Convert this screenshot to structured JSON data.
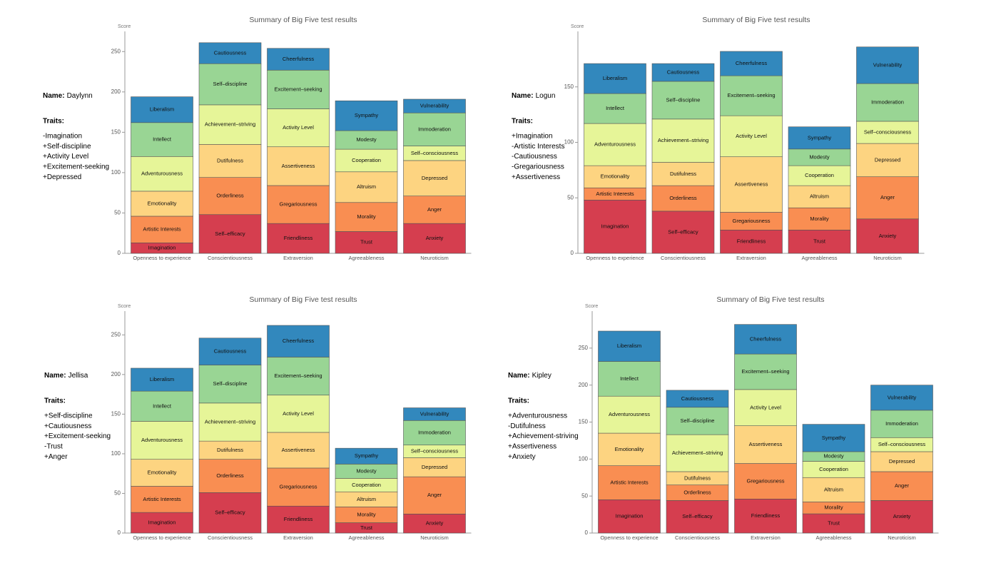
{
  "chart_data": [
    {
      "type": "bar",
      "stacked": true,
      "title": "Summary of Big Five test results",
      "ylabel": "Score",
      "name_label": "Name:",
      "name": "Daylynn",
      "traits_label": "Traits:",
      "traits": [
        "-Imagination",
        "+Self-discipline",
        "+Activity Level",
        "+Excitement-seeking",
        "+Depressed"
      ],
      "categories": [
        "Openness to experience",
        "Conscientiousness",
        "Extraversion",
        "Agreeableness",
        "Neuroticism"
      ],
      "ylim": [
        0,
        275
      ],
      "yticks": [
        0,
        50,
        100,
        150,
        200,
        250
      ],
      "series": [
        {
          "color": "#d53e4f",
          "labels": [
            "Imagination",
            "Self–efficacy",
            "Friendliness",
            "Trust",
            "Anxiety"
          ],
          "values": [
            13,
            48,
            37,
            27,
            37
          ]
        },
        {
          "color": "#f98e52",
          "labels": [
            "Artistic Interests",
            "Orderliness",
            "Gregariousness",
            "Morality",
            "Anger"
          ],
          "values": [
            33,
            46,
            47,
            36,
            34
          ]
        },
        {
          "color": "#fdd481",
          "labels": [
            "Emotionality",
            "Dutifulness",
            "Assertiveness",
            "Altruism",
            "Depressed"
          ],
          "values": [
            31,
            41,
            48,
            38,
            44
          ]
        },
        {
          "color": "#e6f598",
          "labels": [
            "Adventurousness",
            "Achievement–striving",
            "Activity Level",
            "Cooperation",
            "Self–consciousness"
          ],
          "values": [
            43,
            49,
            47,
            28,
            18
          ]
        },
        {
          "color": "#99d594",
          "labels": [
            "Intellect",
            "Self–discipline",
            "Excitement–seeking",
            "Modesty",
            "Immoderation"
          ],
          "values": [
            42,
            51,
            48,
            23,
            41
          ]
        },
        {
          "color": "#3288bd",
          "labels": [
            "Liberalism",
            "Cautiousness",
            "Cheerfulness",
            "Sympathy",
            "Vulnerability"
          ],
          "values": [
            32,
            26,
            27,
            37,
            17
          ]
        }
      ]
    },
    {
      "type": "bar",
      "stacked": true,
      "title": "Summary of Big Five test results",
      "ylabel": "Score",
      "name_label": "Name:",
      "name": "Logun",
      "traits_label": "Traits:",
      "traits": [
        "+Imagination",
        "-Artistic Interests",
        "-Cautiousness",
        "-Gregariousness",
        "+Assertiveness"
      ],
      "categories": [
        "Openness to experience",
        "Conscientiousness",
        "Extraversion",
        "Agreeableness",
        "Neuroticism"
      ],
      "ylim": [
        0,
        200
      ],
      "yticks": [
        0,
        50,
        100,
        150
      ],
      "series": [
        {
          "color": "#d53e4f",
          "labels": [
            "Imagination",
            "Self–efficacy",
            "Friendliness",
            "Trust",
            "Anxiety"
          ],
          "values": [
            48,
            38,
            21,
            21,
            31
          ]
        },
        {
          "color": "#f98e52",
          "labels": [
            "Artistic Interests",
            "Orderliness",
            "Gregariousness",
            "Morality",
            "Anger"
          ],
          "values": [
            11,
            23,
            16,
            20,
            38
          ]
        },
        {
          "color": "#fdd481",
          "labels": [
            "Emotionality",
            "Dutifulness",
            "Assertiveness",
            "Altruism",
            "Depressed"
          ],
          "values": [
            20,
            21,
            50,
            20,
            30
          ]
        },
        {
          "color": "#e6f598",
          "labels": [
            "Adventurousness",
            "Achievement–striving",
            "Activity Level",
            "Cooperation",
            "Self–consciousness"
          ],
          "values": [
            38,
            39,
            37,
            18,
            20
          ]
        },
        {
          "color": "#99d594",
          "labels": [
            "Intellect",
            "Self–discipline",
            "Excitement–seeking",
            "Modesty",
            "Immoderation"
          ],
          "values": [
            27,
            34,
            36,
            15,
            34
          ]
        },
        {
          "color": "#3288bd",
          "labels": [
            "Liberalism",
            "Cautiousness",
            "Cheerfulness",
            "Sympathy",
            "Vulnerability"
          ],
          "values": [
            27,
            16,
            22,
            20,
            33
          ]
        }
      ]
    },
    {
      "type": "bar",
      "stacked": true,
      "title": "Summary of Big Five test results",
      "ylabel": "Score",
      "name_label": "Name:",
      "name": "Jellisa",
      "traits_label": "Traits:",
      "traits": [
        "+Self-discipline",
        "+Cautiousness",
        "+Excitement-seeking",
        "-Trust",
        "+Anger"
      ],
      "categories": [
        "Openness to experience",
        "Conscientiousness",
        "Extraversion",
        "Agreeableness",
        "Neuroticism"
      ],
      "ylim": [
        0,
        280
      ],
      "yticks": [
        0,
        50,
        100,
        150,
        200,
        250
      ],
      "series": [
        {
          "color": "#d53e4f",
          "labels": [
            "Imagination",
            "Self–efficacy",
            "Friendliness",
            "Trust",
            "Anxiety"
          ],
          "values": [
            26,
            51,
            34,
            13,
            24
          ]
        },
        {
          "color": "#f98e52",
          "labels": [
            "Artistic Interests",
            "Orderliness",
            "Gregariousness",
            "Morality",
            "Anger"
          ],
          "values": [
            33,
            42,
            48,
            20,
            47
          ]
        },
        {
          "color": "#fdd481",
          "labels": [
            "Emotionality",
            "Dutifulness",
            "Assertiveness",
            "Altruism",
            "Depressed"
          ],
          "values": [
            34,
            23,
            45,
            19,
            24
          ]
        },
        {
          "color": "#e6f598",
          "labels": [
            "Adventurousness",
            "Achievement–striving",
            "Activity Level",
            "Cooperation",
            "Self–consciousness"
          ],
          "values": [
            48,
            48,
            47,
            17,
            16
          ]
        },
        {
          "color": "#99d594",
          "labels": [
            "Intellect",
            "Self–discipline",
            "Excitement–seeking",
            "Modesty",
            "Immoderation"
          ],
          "values": [
            38,
            48,
            48,
            18,
            31
          ]
        },
        {
          "color": "#3288bd",
          "labels": [
            "Liberalism",
            "Cautiousness",
            "Cheerfulness",
            "Sympathy",
            "Vulnerability"
          ],
          "values": [
            29,
            34,
            40,
            20,
            16
          ]
        }
      ]
    },
    {
      "type": "bar",
      "stacked": true,
      "title": "Summary of Big Five test results",
      "ylabel": "Score",
      "name_label": "Name:",
      "name": "Kipley",
      "traits_label": "Traits:",
      "traits": [
        "+Adventurousness",
        "-Dutifulness",
        "+Achievement-striving",
        "+Assertiveness",
        "+Anxiety"
      ],
      "categories": [
        "Openness to experience",
        "Conscientiousness",
        "Extraversion",
        "Agreeableness",
        "Neuroticism"
      ],
      "ylim": [
        0,
        300
      ],
      "yticks": [
        0,
        50,
        100,
        150,
        200,
        250
      ],
      "series": [
        {
          "color": "#d53e4f",
          "labels": [
            "Imagination",
            "Self–efficacy",
            "Friendliness",
            "Trust",
            "Anxiety"
          ],
          "values": [
            45,
            44,
            46,
            26,
            44
          ]
        },
        {
          "color": "#f98e52",
          "labels": [
            "Artistic Interests",
            "Orderliness",
            "Gregariousness",
            "Morality",
            "Anger"
          ],
          "values": [
            46,
            21,
            48,
            16,
            39
          ]
        },
        {
          "color": "#fdd481",
          "labels": [
            "Emotionality",
            "Dutifulness",
            "Assertiveness",
            "Altruism",
            "Depressed"
          ],
          "values": [
            44,
            18,
            51,
            33,
            27
          ]
        },
        {
          "color": "#e6f598",
          "labels": [
            "Adventurousness",
            "Achievement–striving",
            "Activity Level",
            "Cooperation",
            "Self–consciousness"
          ],
          "values": [
            50,
            50,
            49,
            22,
            19
          ]
        },
        {
          "color": "#99d594",
          "labels": [
            "Intellect",
            "Self–discipline",
            "Excitement–seeking",
            "Modesty",
            "Immoderation"
          ],
          "values": [
            47,
            37,
            48,
            13,
            37
          ]
        },
        {
          "color": "#3288bd",
          "labels": [
            "Liberalism",
            "Cautiousness",
            "Cheerfulness",
            "Sympathy",
            "Vulnerability"
          ],
          "values": [
            41,
            23,
            40,
            37,
            34
          ]
        }
      ]
    }
  ]
}
